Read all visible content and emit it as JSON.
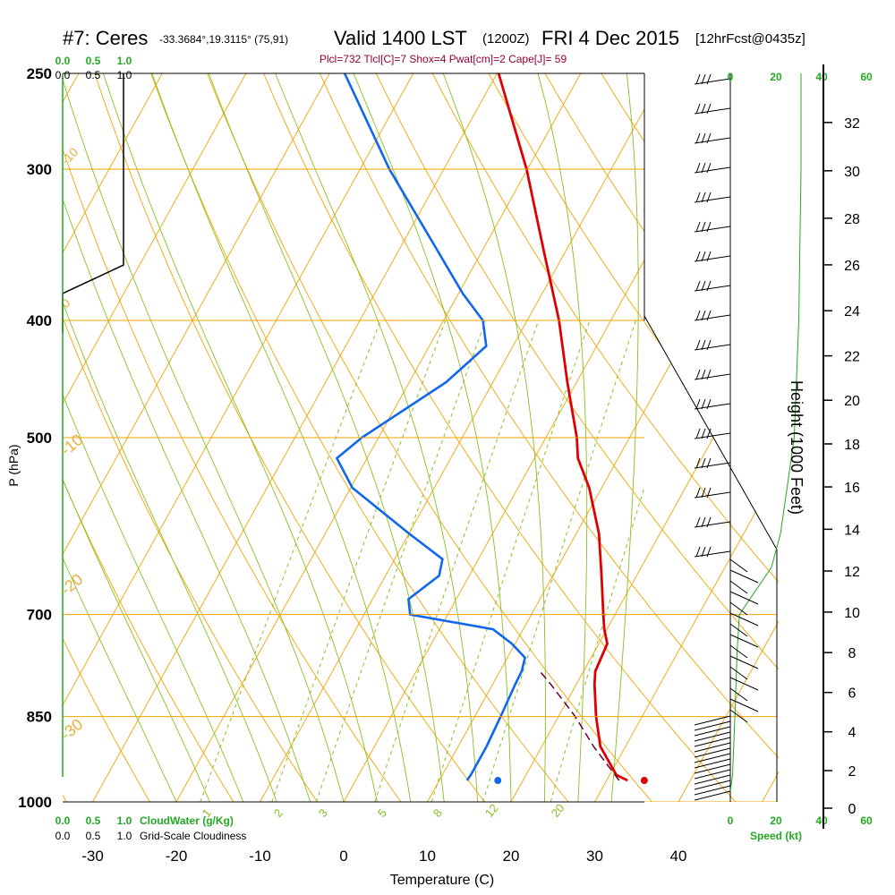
{
  "header": {
    "station": "#7: Ceres",
    "coords": "-33.3684°,19.3115° (75,91)",
    "valid": "Valid 1400 LST",
    "zulu": "(1200Z)",
    "date": "FRI 4 Dec 2015",
    "forecast": "[12hrFcst@0435z]",
    "indices": "Plcl=732 Tlcl[C]=7 Shox=4 Pwat[cm]=2 Cape[J]= 59"
  },
  "labels": {
    "cloudwater": "CloudWater (g/Kg)",
    "cloudiness": "Grid-Scale Cloudiness",
    "speed": "Speed (kt)",
    "height": "Height (1000 Feet)",
    "pressure": "P (hPa)",
    "temperature": "Temperature (C)",
    "cw_ticks": [
      "0.0",
      "0.5",
      "1.0"
    ],
    "cloud_ticks": [
      "0.0",
      "0.5",
      "1.0"
    ],
    "speed_ticks": [
      "0",
      "20",
      "40",
      "60"
    ]
  },
  "colors": {
    "temperature": "#dd0000",
    "dewpoint": "#1166ee",
    "parcel": "#660033",
    "isobar": "#f0a500",
    "mixing": "#88c020",
    "cloudwater": "#22aa22",
    "indices": "#990033"
  },
  "chart_data": {
    "type": "line",
    "title": "Valid 1400 LST (1200Z) FRI 4 Dec 2015",
    "xlabel": "Temperature (C)",
    "ylabel": "P (hPa)",
    "x_ticks": [
      -30,
      -20,
      -10,
      0,
      10,
      20,
      30,
      40
    ],
    "p_ticks": [
      250,
      300,
      400,
      500,
      700,
      850,
      1000
    ],
    "height_ticks": [
      0,
      2,
      4,
      6,
      8,
      10,
      12,
      14,
      16,
      18,
      20,
      22,
      24,
      26,
      28,
      30,
      32
    ],
    "isotherm_labels": [
      -30,
      -20,
      -10,
      0,
      10,
      20,
      30
    ],
    "mixing_ratio_labels": [
      "1",
      "2",
      "3",
      "5",
      "8",
      "12",
      "20"
    ],
    "series": [
      {
        "values": [
          [
            960,
            32.5
          ],
          [
            950,
            30.8
          ],
          [
            900,
            27.0
          ],
          [
            850,
            24.5
          ],
          [
            800,
            22.2
          ],
          [
            780,
            21.4
          ],
          [
            760,
            21.2
          ],
          [
            740,
            21.0
          ],
          [
            720,
            19.7
          ],
          [
            700,
            18.6
          ],
          [
            650,
            15.8
          ],
          [
            600,
            12.7
          ],
          [
            550,
            8.5
          ],
          [
            520,
            5.2
          ],
          [
            500,
            3.7
          ],
          [
            450,
            -1.1
          ],
          [
            400,
            -6.2
          ],
          [
            350,
            -12.7
          ],
          [
            300,
            -20.1
          ],
          [
            250,
            -29.8
          ]
        ]
      },
      {
        "values": [
          [
            960,
            13.3
          ],
          [
            950,
            13.4
          ],
          [
            900,
            13.4
          ],
          [
            850,
            13.1
          ],
          [
            800,
            12.7
          ],
          [
            780,
            12.6
          ],
          [
            760,
            12.1
          ],
          [
            740,
            9.6
          ],
          [
            720,
            6.4
          ],
          [
            700,
            -4.5
          ],
          [
            680,
            -5.7
          ],
          [
            650,
            -3.6
          ],
          [
            630,
            -4.3
          ],
          [
            600,
            -10.0
          ],
          [
            550,
            -19.8
          ],
          [
            520,
            -23.6
          ],
          [
            500,
            -22.0
          ],
          [
            450,
            -15.6
          ],
          [
            420,
            -13.2
          ],
          [
            400,
            -15.3
          ],
          [
            380,
            -19.5
          ],
          [
            350,
            -25.4
          ],
          [
            300,
            -36.5
          ],
          [
            250,
            -48.2
          ]
        ]
      },
      {
        "values": [
          [
            960,
            31.5
          ],
          [
            900,
            26.2
          ],
          [
            850,
            22.0
          ],
          [
            800,
            17.0
          ],
          [
            780,
            14.8
          ]
        ]
      }
    ],
    "surface_points": [
      {
        "p": 960,
        "t": 17.0,
        "kind": "dewpoint"
      },
      {
        "p": 960,
        "t": 34.5,
        "kind": "temperature"
      }
    ],
    "cloud_water": [
      [
        1000,
        0.0
      ],
      [
        700,
        0.0
      ],
      [
        400,
        0.0
      ],
      [
        250,
        0.0
      ]
    ],
    "cloudiness": [
      [
        250,
        1.0
      ],
      [
        360,
        1.0
      ],
      [
        380,
        0.0
      ],
      [
        410,
        0.0
      ]
    ],
    "wind_speed_kt": [
      [
        980,
        0
      ],
      [
        950,
        1
      ],
      [
        850,
        2
      ],
      [
        750,
        3
      ],
      [
        700,
        4
      ],
      [
        640,
        18
      ],
      [
        600,
        22
      ],
      [
        500,
        28
      ],
      [
        400,
        30
      ],
      [
        300,
        31
      ],
      [
        250,
        31
      ]
    ]
  }
}
